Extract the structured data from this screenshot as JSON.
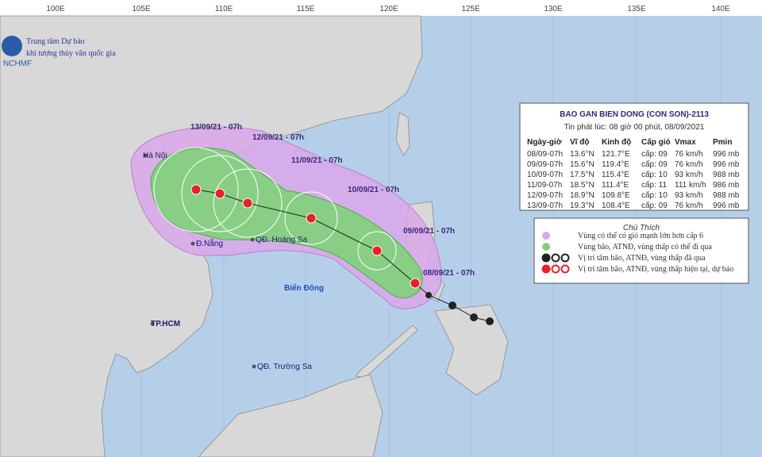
{
  "header": {
    "logo_text": "NCHMF",
    "org_line1": "Trung tâm Dự báo",
    "org_line2": "khí tượng thủy văn quốc gia"
  },
  "lon_labels": [
    "100E",
    "105E",
    "110E",
    "115E",
    "120E",
    "125E",
    "130E",
    "135E",
    "140E"
  ],
  "forecast_box": {
    "title": "BAO GAN BIEN DONG (CON SON)-2113",
    "issued": "Tin phát lúc: 08 giờ 00 phút, 08/09/2021",
    "columns": [
      "Ngày-giờ",
      "Vĩ độ",
      "Kinh độ",
      "Cấp gió",
      "Vmax",
      "Pmin"
    ],
    "rows": [
      [
        "08/09-07h",
        "13.6°N",
        "121.7°E",
        "cấp: 09",
        "76 km/h",
        "996 mb"
      ],
      [
        "09/09-07h",
        "15.6°N",
        "119.4°E",
        "cấp: 09",
        "76 km/h",
        "996 mb"
      ],
      [
        "10/09-07h",
        "17.5°N",
        "115.4°E",
        "cấp: 10",
        "93 km/h",
        "988 mb"
      ],
      [
        "11/09-07h",
        "18.5°N",
        "111.4°E",
        "cấp: 11",
        "111 km/h",
        "986 mb"
      ],
      [
        "12/09-07h",
        "18.9°N",
        "109.8°E",
        "cấp: 10",
        "93 km/h",
        "988 mb"
      ],
      [
        "13/09-07h",
        "19.3°N",
        "108.4°E",
        "cấp: 09",
        "76 km/h",
        "996 mb"
      ]
    ]
  },
  "legend": {
    "title": "Chú Thích",
    "items": [
      "Vùng có thể có gió mạnh lớn hơn cấp 6",
      "Vùng bão, ATNĐ, vùng thấp có thể đi qua",
      "Vị trí tâm bão, ATNĐ, vùng thấp đã qua",
      "Vị trí tâm bão, ATNĐ, vùng thấp hiện tại, dự báo"
    ]
  },
  "places": [
    "Hà Nội",
    "Đ.Nẵng",
    "QĐ. Hoàng Sa",
    "TP.HCM",
    "QĐ. Trường Sa"
  ],
  "sea_label": "Biển Đông",
  "track_labels": [
    "13/09/21 - 07h",
    "12/09/21 - 07h",
    "11/09/21 - 07h",
    "10/09/21 - 07h",
    "09/09/21 - 07h",
    "08/09/21 - 07h"
  ]
}
